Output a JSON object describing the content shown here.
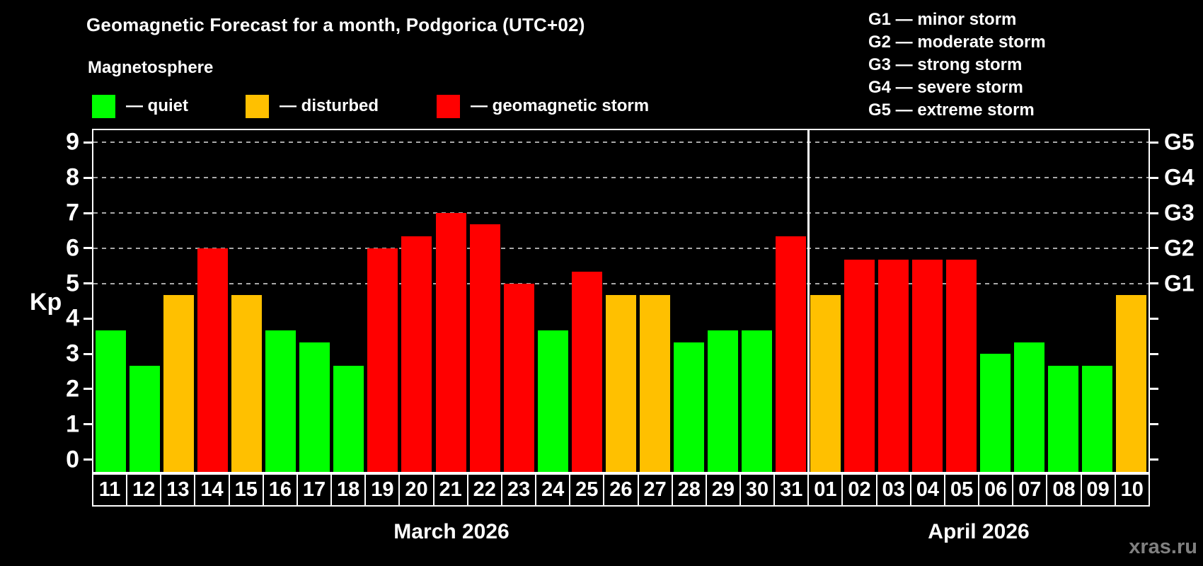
{
  "title": "Geomagnetic Forecast for a month, Podgorica (UTC+02)",
  "subtitle": "Magnetosphere",
  "legend": {
    "items": [
      {
        "state": "quiet",
        "label": "— quiet"
      },
      {
        "state": "disturbed",
        "label": "— disturbed"
      },
      {
        "state": "storm",
        "label": "— geomagnetic storm"
      }
    ]
  },
  "storm_scale_legend": [
    "G1 — minor storm",
    "G2 — moderate storm",
    "G3 — strong storm",
    "G4 — severe storm",
    "G5 — extreme storm"
  ],
  "watermark": "xras.ru",
  "chart_data": {
    "type": "bar",
    "ylabel": "Kp",
    "ylim": [
      0,
      9
    ],
    "yticks": [
      0,
      1,
      2,
      3,
      4,
      5,
      6,
      7,
      8,
      9
    ],
    "gridlines_at": [
      5,
      6,
      7,
      8,
      9
    ],
    "grid": "dashed-horizontal",
    "right_axis": [
      {
        "label": "G1",
        "kp": 5
      },
      {
        "label": "G2",
        "kp": 6
      },
      {
        "label": "G3",
        "kp": 7
      },
      {
        "label": "G4",
        "kp": 8
      },
      {
        "label": "G5",
        "kp": 9
      }
    ],
    "colors": {
      "quiet": "#00ff00",
      "disturbed": "#ffc000",
      "storm": "#ff0000",
      "background": "#000000",
      "axis": "#ffffff",
      "gridline": "#a8a8a8",
      "watermark": "#808080"
    },
    "months": [
      {
        "label": "March 2026",
        "days": [
          {
            "day": "11",
            "kp": 3.67,
            "state": "quiet"
          },
          {
            "day": "12",
            "kp": 2.67,
            "state": "quiet"
          },
          {
            "day": "13",
            "kp": 4.67,
            "state": "disturbed"
          },
          {
            "day": "14",
            "kp": 6.0,
            "state": "storm"
          },
          {
            "day": "15",
            "kp": 4.67,
            "state": "disturbed"
          },
          {
            "day": "16",
            "kp": 3.67,
            "state": "quiet"
          },
          {
            "day": "17",
            "kp": 3.33,
            "state": "quiet"
          },
          {
            "day": "18",
            "kp": 2.67,
            "state": "quiet"
          },
          {
            "day": "19",
            "kp": 6.0,
            "state": "storm"
          },
          {
            "day": "20",
            "kp": 6.33,
            "state": "storm"
          },
          {
            "day": "21",
            "kp": 7.0,
            "state": "storm"
          },
          {
            "day": "22",
            "kp": 6.67,
            "state": "storm"
          },
          {
            "day": "23",
            "kp": 5.0,
            "state": "storm"
          },
          {
            "day": "24",
            "kp": 3.67,
            "state": "quiet"
          },
          {
            "day": "25",
            "kp": 5.33,
            "state": "storm"
          },
          {
            "day": "26",
            "kp": 4.67,
            "state": "disturbed"
          },
          {
            "day": "27",
            "kp": 4.67,
            "state": "disturbed"
          },
          {
            "day": "28",
            "kp": 3.33,
            "state": "quiet"
          },
          {
            "day": "29",
            "kp": 3.67,
            "state": "quiet"
          },
          {
            "day": "30",
            "kp": 3.67,
            "state": "quiet"
          },
          {
            "day": "31",
            "kp": 6.33,
            "state": "storm"
          }
        ]
      },
      {
        "label": "April 2026",
        "days": [
          {
            "day": "01",
            "kp": 4.67,
            "state": "disturbed"
          },
          {
            "day": "02",
            "kp": 5.67,
            "state": "storm"
          },
          {
            "day": "03",
            "kp": 5.67,
            "state": "storm"
          },
          {
            "day": "04",
            "kp": 5.67,
            "state": "storm"
          },
          {
            "day": "05",
            "kp": 5.67,
            "state": "storm"
          },
          {
            "day": "06",
            "kp": 3.0,
            "state": "quiet"
          },
          {
            "day": "07",
            "kp": 3.33,
            "state": "quiet"
          },
          {
            "day": "08",
            "kp": 2.67,
            "state": "quiet"
          },
          {
            "day": "09",
            "kp": 2.67,
            "state": "quiet"
          },
          {
            "day": "10",
            "kp": 4.67,
            "state": "disturbed"
          }
        ]
      }
    ]
  }
}
